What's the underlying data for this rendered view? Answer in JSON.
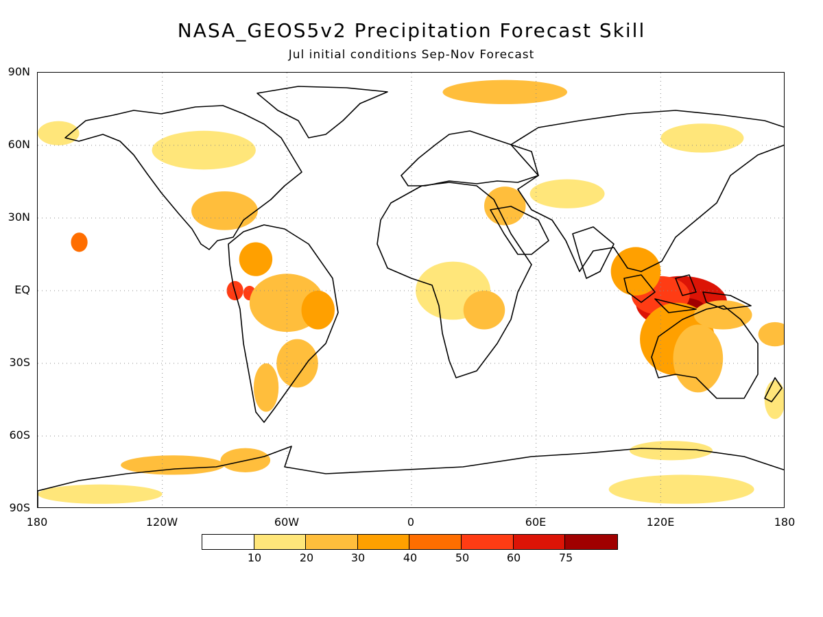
{
  "title": "NASA_GEOS5v2 Precipitation Forecast Skill",
  "subtitle": "Jul initial conditions   Sep-Nov Forecast",
  "lat_labels": [
    "90N",
    "60N",
    "30N",
    "EQ",
    "30S",
    "60S",
    "90S"
  ],
  "lon_labels": [
    "180",
    "120W",
    "60W",
    "0",
    "60E",
    "120E",
    "180"
  ],
  "legend": {
    "colors": [
      "#ffffff",
      "#ffe67a",
      "#ffbe3c",
      "#ffa000",
      "#ff6e00",
      "#ff3c14",
      "#dc1406",
      "#a00000"
    ],
    "labels": [
      "10",
      "20",
      "30",
      "40",
      "50",
      "60",
      "75"
    ]
  },
  "map": {
    "projection": "cylindrical equidistant",
    "lon_range": [
      -180,
      180
    ],
    "lat_range": [
      -90,
      90
    ],
    "grid": "dotted every 30 degrees",
    "skill_regions": [
      {
        "lon": 130,
        "lat": -5,
        "rx": 22,
        "ry": 11,
        "level": 6
      },
      {
        "lon": 132,
        "lat": -8,
        "rx": 10,
        "ry": 5,
        "level": 7
      },
      {
        "lon": 120,
        "lat": -2,
        "rx": 14,
        "ry": 8,
        "level": 5
      },
      {
        "lon": 128,
        "lat": -20,
        "rx": 18,
        "ry": 15,
        "level": 3
      },
      {
        "lon": 138,
        "lat": -28,
        "rx": 12,
        "ry": 14,
        "level": 2
      },
      {
        "lon": 108,
        "lat": 8,
        "rx": 12,
        "ry": 10,
        "level": 3
      },
      {
        "lon": 150,
        "lat": -10,
        "rx": 14,
        "ry": 6,
        "level": 2
      },
      {
        "lon": 175,
        "lat": -18,
        "rx": 8,
        "ry": 5,
        "level": 2
      },
      {
        "lon": -85,
        "lat": 0,
        "rx": 4,
        "ry": 4,
        "level": 5
      },
      {
        "lon": -78,
        "lat": -1,
        "rx": 3,
        "ry": 3,
        "level": 5
      },
      {
        "lon": -160,
        "lat": 20,
        "rx": 4,
        "ry": 4,
        "level": 4
      },
      {
        "lon": -75,
        "lat": 13,
        "rx": 8,
        "ry": 7,
        "level": 3
      },
      {
        "lon": -60,
        "lat": -5,
        "rx": 18,
        "ry": 12,
        "level": 2
      },
      {
        "lon": -45,
        "lat": -8,
        "rx": 8,
        "ry": 8,
        "level": 3
      },
      {
        "lon": -55,
        "lat": -30,
        "rx": 10,
        "ry": 10,
        "level": 2
      },
      {
        "lon": -70,
        "lat": -40,
        "rx": 6,
        "ry": 10,
        "level": 2
      },
      {
        "lon": -90,
        "lat": 33,
        "rx": 16,
        "ry": 8,
        "level": 2
      },
      {
        "lon": -100,
        "lat": 58,
        "rx": 25,
        "ry": 8,
        "level": 1
      },
      {
        "lon": 20,
        "lat": 0,
        "rx": 18,
        "ry": 12,
        "level": 1
      },
      {
        "lon": 35,
        "lat": -8,
        "rx": 10,
        "ry": 8,
        "level": 2
      },
      {
        "lon": 45,
        "lat": 35,
        "rx": 10,
        "ry": 8,
        "level": 2
      },
      {
        "lon": 45,
        "lat": 82,
        "rx": 30,
        "ry": 5,
        "level": 2
      },
      {
        "lon": 140,
        "lat": 63,
        "rx": 20,
        "ry": 6,
        "level": 1
      },
      {
        "lon": -115,
        "lat": -72,
        "rx": 25,
        "ry": 4,
        "level": 2
      },
      {
        "lon": -80,
        "lat": -70,
        "rx": 12,
        "ry": 5,
        "level": 2
      },
      {
        "lon": 130,
        "lat": -82,
        "rx": 35,
        "ry": 6,
        "level": 1
      },
      {
        "lon": 125,
        "lat": -66,
        "rx": 20,
        "ry": 4,
        "level": 1
      },
      {
        "lon": -150,
        "lat": -84,
        "rx": 30,
        "ry": 4,
        "level": 1
      },
      {
        "lon": 75,
        "lat": 40,
        "rx": 18,
        "ry": 6,
        "level": 1
      },
      {
        "lon": -170,
        "lat": 65,
        "rx": 10,
        "ry": 5,
        "level": 1
      },
      {
        "lon": 175,
        "lat": -45,
        "rx": 5,
        "ry": 8,
        "level": 1
      }
    ]
  }
}
